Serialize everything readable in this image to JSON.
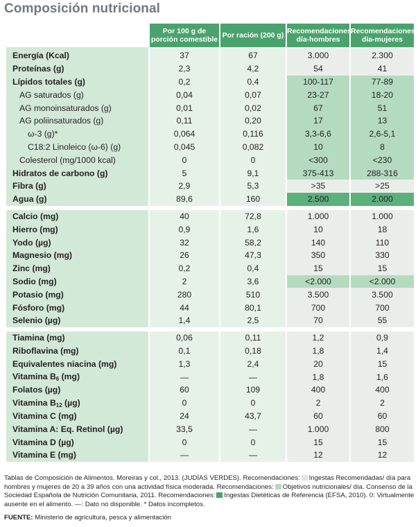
{
  "title": "Composición nutricional",
  "headers": {
    "per100": "Por 100 g de porción comestible",
    "ration": "Por ración (200 g)",
    "rec_men": "Recomendaciones día-hombres",
    "rec_women": "Recomendaciones día-mujeres"
  },
  "rows": [
    {
      "label": "Energía (Kcal)",
      "v100": "37",
      "vrac": "67",
      "men": "3.000",
      "women": "2.300"
    },
    {
      "label": "Proteínas (g)",
      "v100": "2,3",
      "vrac": "4,2",
      "men": "54",
      "women": "41"
    },
    {
      "label": "Lípidos totales (g)",
      "v100": "0,2",
      "vrac": "0,4",
      "men": "100-117",
      "women": "77-89"
    },
    {
      "label": "AG saturados (g)",
      "v100": "0,04",
      "vrac": "0,07",
      "men": "23-27",
      "women": "18-20"
    },
    {
      "label": "AG monoinsaturados (g)",
      "v100": "0,01",
      "vrac": "0,02",
      "men": "67",
      "women": "51"
    },
    {
      "label": "AG poliinsaturados (g)",
      "v100": "0,11",
      "vrac": "0,20",
      "men": "17",
      "women": "13"
    },
    {
      "label": "ω-3 (g)*",
      "v100": "0,064",
      "vrac": "0,116",
      "men": "3,3-6,6",
      "women": "2,6-5,1"
    },
    {
      "label": "C18:2 Linoleico (ω-6) (g)",
      "v100": "0,045",
      "vrac": "0,082",
      "men": "10",
      "women": "8"
    },
    {
      "label": "Colesterol (mg/1000 kcal)",
      "v100": "0",
      "vrac": "0",
      "men": "<300",
      "women": "<230"
    },
    {
      "label": "Hidratos de carbono (g)",
      "v100": "5",
      "vrac": "9,1",
      "men": "375-413",
      "women": "288-316"
    },
    {
      "label": "Fibra (g)",
      "v100": "2,9",
      "vrac": "5,3",
      "men": ">35",
      "women": ">25"
    },
    {
      "label": "Agua (g)",
      "v100": "89,6",
      "vrac": "160",
      "men": "2.500",
      "women": "2.000"
    },
    {
      "label": "Calcio (mg)",
      "v100": "40",
      "vrac": "72,8",
      "men": "1.000",
      "women": "1.000"
    },
    {
      "label": "Hierro (mg)",
      "v100": "0,9",
      "vrac": "1,6",
      "men": "10",
      "women": "18"
    },
    {
      "label": "Yodo (µg)",
      "v100": "32",
      "vrac": "58,2",
      "men": "140",
      "women": "110"
    },
    {
      "label": "Magnesio (mg)",
      "v100": "26",
      "vrac": "47,3",
      "men": "350",
      "women": "330"
    },
    {
      "label": "Zinc (mg)",
      "v100": "0,2",
      "vrac": "0,4",
      "men": "15",
      "women": "15"
    },
    {
      "label": "Sodio (mg)",
      "v100": "2",
      "vrac": "3,6",
      "men": "<2.000",
      "women": "<2.000"
    },
    {
      "label": "Potasio (mg)",
      "v100": "280",
      "vrac": "510",
      "men": "3.500",
      "women": "3.500"
    },
    {
      "label": "Fósforo (mg)",
      "v100": "44",
      "vrac": "80,1",
      "men": "700",
      "women": "700"
    },
    {
      "label": "Selenio (µg)",
      "v100": "1,4",
      "vrac": "2,5",
      "men": "70",
      "women": "55"
    },
    {
      "label": "Tiamina (mg)",
      "v100": "0,06",
      "vrac": "0,11",
      "men": "1,2",
      "women": "0,9"
    },
    {
      "label": "Riboflavina (mg)",
      "v100": "0,1",
      "vrac": "0,18",
      "men": "1,8",
      "women": "1,4"
    },
    {
      "label": "Equivalentes niacina (mg)",
      "v100": "1,3",
      "vrac": "2,4",
      "men": "20",
      "women": "15"
    },
    {
      "label": "Vitamina B",
      "label_sub": "6",
      "label_end": " (mg)",
      "v100": "—",
      "vrac": "—",
      "men": "1,8",
      "women": "1,6"
    },
    {
      "label": "Folatos (µg)",
      "v100": "60",
      "vrac": "109",
      "men": "400",
      "women": "400"
    },
    {
      "label": "Vitamina B",
      "label_sub": "12",
      "label_end": " (µg)",
      "v100": "0",
      "vrac": "0",
      "men": "2",
      "women": "2"
    },
    {
      "label": "Vitamina C (mg)",
      "v100": "24",
      "vrac": "43,7",
      "men": "60",
      "women": "60"
    },
    {
      "label": "Vitamina A: Eq. Retinol (µg)",
      "v100": "33,5",
      "vrac": "—",
      "men": "1.000",
      "women": "800"
    },
    {
      "label": "Vitamina D (µg)",
      "v100": "0",
      "vrac": "0",
      "men": "15",
      "women": "15"
    },
    {
      "label": "Vitamina E (mg)",
      "v100": "—",
      "vrac": "—",
      "men": "12",
      "women": "12"
    }
  ],
  "notes": {
    "part1": "Tablas de Composición de Alimentos. Moreiras y col., 2013. (JUDÍAS VERDES).  Recomendaciones:",
    "legend1": "Ingestas Recomendadas/ día para hombres y mujeres de 20 a 39 años con una actividad física moderada. Recomendaciones:",
    "legend2": "Objetivos nutricionales/ día. Consenso de la Sociedad Española de Nutrición Comunitaria, 2011. Recomendaciones:",
    "legend3": "Ingestas Dietéticas de Referencia (EFSA, 2010). 0: Virtualmente ausente en el alimento. —: Dato no disponible. * Datos incompletos."
  },
  "source": {
    "label": "FUENTE:",
    "text": " Ministerio de agricultura, pesca y alimentación"
  },
  "colors": {
    "header_green": "#4aa36c",
    "label_bg": "#d3e9d8",
    "value_bg": "#e6f2e7",
    "ingestas_recomendadas": "#e9eeea",
    "objetivos_nutricionales": "#b4dbbf",
    "ingestas_dieteticas_referencia": "#5bb07b",
    "title_gray": "#6e7a80"
  }
}
